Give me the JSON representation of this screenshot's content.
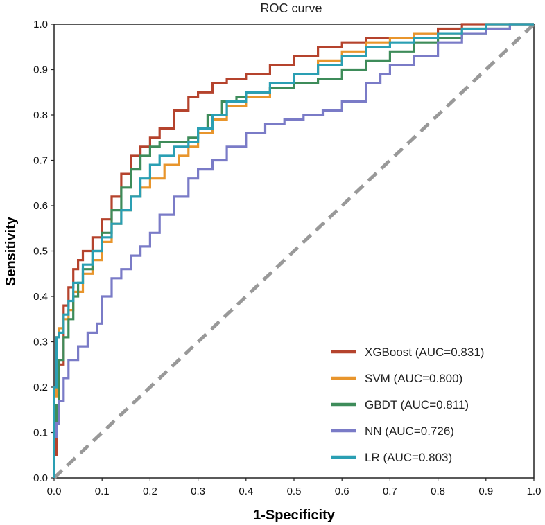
{
  "chart_data": {
    "type": "line",
    "title": "ROC curve",
    "xlabel": "1-Specificity",
    "ylabel": "Sensitivity",
    "xlim": [
      0,
      1
    ],
    "ylim": [
      0,
      1
    ],
    "x_ticks": [
      "0.0",
      "0.1",
      "0.2",
      "0.3",
      "0.4",
      "0.5",
      "0.6",
      "0.7",
      "0.8",
      "0.9",
      "1.0"
    ],
    "y_ticks": [
      "0.0",
      "0.1",
      "0.2",
      "0.3",
      "0.4",
      "0.5",
      "0.6",
      "0.7",
      "0.8",
      "0.9",
      "1.0"
    ],
    "legend_position": "bottom-right",
    "diagonal": {
      "x": [
        0,
        1
      ],
      "y": [
        0,
        1
      ],
      "color": "#999999",
      "style": "dashed"
    },
    "series": [
      {
        "name": "XGBoost",
        "label": "XGBoost (AUC=0.831)",
        "color": "#b5432d",
        "x": [
          0,
          0.005,
          0.01,
          0.02,
          0.03,
          0.04,
          0.05,
          0.06,
          0.08,
          0.1,
          0.12,
          0.14,
          0.16,
          0.18,
          0.2,
          0.22,
          0.25,
          0.28,
          0.3,
          0.33,
          0.36,
          0.4,
          0.45,
          0.5,
          0.55,
          0.6,
          0.65,
          0.7,
          0.75,
          0.8,
          0.85,
          0.9,
          0.95,
          1.0
        ],
        "y": [
          0,
          0.05,
          0.12,
          0.25,
          0.38,
          0.42,
          0.46,
          0.48,
          0.5,
          0.53,
          0.57,
          0.62,
          0.67,
          0.71,
          0.73,
          0.75,
          0.77,
          0.81,
          0.84,
          0.85,
          0.87,
          0.88,
          0.89,
          0.91,
          0.93,
          0.95,
          0.96,
          0.97,
          0.97,
          0.98,
          0.99,
          1.0,
          1.0,
          1.0
        ]
      },
      {
        "name": "SVM",
        "label": "SVM (AUC=0.800)",
        "color": "#e8952c",
        "x": [
          0,
          0.005,
          0.01,
          0.02,
          0.03,
          0.04,
          0.06,
          0.08,
          0.1,
          0.12,
          0.14,
          0.16,
          0.18,
          0.2,
          0.23,
          0.26,
          0.28,
          0.3,
          0.33,
          0.36,
          0.4,
          0.45,
          0.5,
          0.55,
          0.6,
          0.65,
          0.7,
          0.75,
          0.8,
          0.85,
          0.9,
          0.95,
          1.0
        ],
        "y": [
          0,
          0.18,
          0.31,
          0.33,
          0.35,
          0.37,
          0.41,
          0.45,
          0.48,
          0.52,
          0.56,
          0.59,
          0.62,
          0.64,
          0.66,
          0.69,
          0.71,
          0.73,
          0.76,
          0.79,
          0.82,
          0.84,
          0.86,
          0.89,
          0.92,
          0.94,
          0.96,
          0.97,
          0.98,
          0.98,
          0.99,
          1.0,
          1.0
        ]
      },
      {
        "name": "GBDT",
        "label": "GBDT (AUC=0.811)",
        "color": "#3e8c5a",
        "x": [
          0,
          0.005,
          0.01,
          0.02,
          0.03,
          0.04,
          0.05,
          0.06,
          0.08,
          0.1,
          0.12,
          0.14,
          0.16,
          0.18,
          0.2,
          0.22,
          0.25,
          0.28,
          0.3,
          0.32,
          0.35,
          0.38,
          0.4,
          0.45,
          0.5,
          0.55,
          0.6,
          0.65,
          0.7,
          0.75,
          0.8,
          0.85,
          0.9,
          0.95,
          1.0
        ],
        "y": [
          0,
          0.1,
          0.16,
          0.26,
          0.31,
          0.35,
          0.4,
          0.43,
          0.46,
          0.5,
          0.54,
          0.59,
          0.64,
          0.68,
          0.71,
          0.73,
          0.74,
          0.74,
          0.75,
          0.77,
          0.8,
          0.83,
          0.84,
          0.85,
          0.86,
          0.87,
          0.88,
          0.9,
          0.92,
          0.94,
          0.96,
          0.97,
          0.98,
          0.99,
          1.0
        ]
      },
      {
        "name": "NN",
        "label": "NN (AUC=0.726)",
        "color": "#7a7bc7",
        "x": [
          0,
          0.005,
          0.01,
          0.02,
          0.03,
          0.05,
          0.07,
          0.09,
          0.1,
          0.12,
          0.14,
          0.16,
          0.18,
          0.2,
          0.22,
          0.25,
          0.28,
          0.3,
          0.33,
          0.36,
          0.4,
          0.44,
          0.48,
          0.52,
          0.56,
          0.6,
          0.65,
          0.68,
          0.7,
          0.75,
          0.8,
          0.85,
          0.9,
          0.95,
          1.0
        ],
        "y": [
          0,
          0.09,
          0.12,
          0.17,
          0.22,
          0.26,
          0.29,
          0.32,
          0.34,
          0.4,
          0.44,
          0.46,
          0.49,
          0.51,
          0.54,
          0.58,
          0.62,
          0.66,
          0.68,
          0.7,
          0.73,
          0.76,
          0.78,
          0.79,
          0.8,
          0.81,
          0.83,
          0.87,
          0.89,
          0.91,
          0.93,
          0.96,
          0.98,
          0.99,
          1.0
        ]
      },
      {
        "name": "LR",
        "label": "LR (AUC=0.803)",
        "color": "#2a9fb3",
        "x": [
          0,
          0.005,
          0.01,
          0.02,
          0.03,
          0.04,
          0.06,
          0.08,
          0.1,
          0.12,
          0.14,
          0.16,
          0.18,
          0.2,
          0.22,
          0.25,
          0.28,
          0.3,
          0.33,
          0.36,
          0.4,
          0.45,
          0.5,
          0.55,
          0.6,
          0.65,
          0.7,
          0.75,
          0.8,
          0.85,
          0.9,
          0.95,
          1.0
        ],
        "y": [
          0,
          0.2,
          0.31,
          0.32,
          0.36,
          0.39,
          0.43,
          0.47,
          0.5,
          0.53,
          0.56,
          0.59,
          0.62,
          0.66,
          0.69,
          0.71,
          0.73,
          0.74,
          0.77,
          0.8,
          0.83,
          0.85,
          0.87,
          0.89,
          0.91,
          0.93,
          0.95,
          0.96,
          0.97,
          0.98,
          0.99,
          1.0,
          1.0
        ]
      }
    ]
  }
}
